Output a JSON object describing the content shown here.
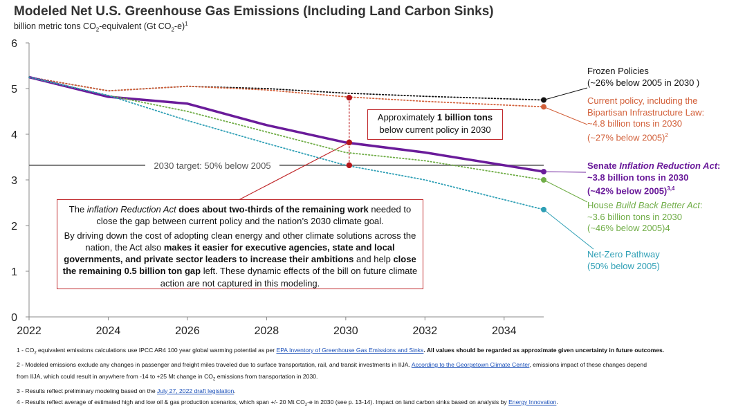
{
  "title": "Modeled Net U.S. Greenhouse Gas Emissions (Including Land Carbon Sinks)",
  "subtitle": {
    "prefix": "billion metric tons CO",
    "sub": "2",
    "mid": "-equivalent (Gt CO",
    "sub2": "2",
    "suffix": "-e)",
    "sup": "1"
  },
  "chart_data": {
    "type": "line",
    "title": "Modeled Net U.S. Greenhouse Gas Emissions (Including Land Carbon Sinks)",
    "ylabel": "billion metric tons CO2-equivalent (Gt CO2-e)",
    "xlim": [
      2022,
      2035
    ],
    "ylim": [
      0,
      6
    ],
    "x_ticks": [
      2022,
      2024,
      2026,
      2028,
      2030,
      2032,
      2034
    ],
    "y_ticks": [
      0,
      1,
      2,
      3,
      4,
      5,
      6
    ],
    "series": [
      {
        "name": "Frozen Policies",
        "color": "#111111",
        "style": "dotted",
        "x": [
          2022,
          2024,
          2026,
          2028,
          2030,
          2032,
          2035
        ],
        "y": [
          5.25,
          4.95,
          5.05,
          5.0,
          4.9,
          4.83,
          4.75
        ]
      },
      {
        "name": "Current policy, including the Bipartisan Infrastructure Law",
        "color": "#d2603a",
        "style": "dotted",
        "x": [
          2022,
          2024,
          2026,
          2028,
          2030,
          2032,
          2035
        ],
        "y": [
          5.25,
          4.95,
          5.05,
          4.97,
          4.82,
          4.72,
          4.6
        ]
      },
      {
        "name": "Senate Inflation Reduction Act",
        "color": "#6a1b9a",
        "style": "solid",
        "x": [
          2022,
          2024,
          2026,
          2028,
          2030,
          2032,
          2035
        ],
        "y": [
          5.25,
          4.82,
          4.67,
          4.2,
          3.82,
          3.6,
          3.18
        ]
      },
      {
        "name": "House Build Back Better Act",
        "color": "#70ad47",
        "style": "dotted",
        "x": [
          2022,
          2024,
          2026,
          2028,
          2030,
          2032,
          2035
        ],
        "y": [
          5.25,
          4.85,
          4.5,
          4.05,
          3.6,
          3.42,
          3.0
        ]
      },
      {
        "name": "Net-Zero Pathway",
        "color": "#2e9fb5",
        "style": "dotted",
        "x": [
          2022,
          2024,
          2026,
          2028,
          2030,
          2032,
          2035
        ],
        "y": [
          5.25,
          4.85,
          4.3,
          3.8,
          3.32,
          3.0,
          2.35
        ]
      }
    ],
    "target_line": {
      "y": 3.32,
      "label": "2030 target: 50% below 2005"
    },
    "gap_markers": {
      "x": 2030,
      "y": [
        4.8,
        3.82,
        3.32
      ]
    }
  },
  "callouts": {
    "one_billion": {
      "prefix": "Approximately ",
      "bold": "1 billion tons",
      "line2": "below current policy in 2030"
    },
    "ira_box": {
      "p1_a": "The ",
      "p1_italic": "inflation Reduction Act",
      "p1_b": " does about two-thirds of the remaining work",
      "p1_c": " needed to close the gap between current policy and the nation’s 2030 climate goal.",
      "p2_a": "By driving down the cost of adopting clean energy and other climate solutions across the nation, the Act also ",
      "p2_bold1": "makes it easier for executive agencies, state and local governments, and private sector leaders to increase their ambitions",
      "p2_b": " and help ",
      "p2_bold2": "close the remaining 0.5 billion ton gap",
      "p2_c": " left. These dynamic effects of the bill on future climate action are not captured in this modeling."
    }
  },
  "labels": {
    "frozen": {
      "line1": "Frozen Policies",
      "line2": "(~26% below 2005 in 2030 )",
      "color": "#111111"
    },
    "current": {
      "line1": "Current policy, including the",
      "line2": "Bipartisan Infrastructure Law:",
      "line3": "~4.8 billion tons in 2030",
      "line4": "(~27% below 2005)",
      "line4_sup": "2",
      "color": "#d2603a"
    },
    "senate": {
      "prefix": "Senate ",
      "italic": "Inflation Reduction Act",
      "suffix": ":",
      "line2": "~3.8 billion tons in 2030",
      "line3": "(~42% below 2005)",
      "line3_sup": "3,4",
      "color": "#6a1b9a"
    },
    "house": {
      "prefix": "House ",
      "italic": "Build Back Better Act",
      "suffix": ":",
      "line2": "~3.6 billion tons in 2030",
      "line3": "(~46% below 2005)4",
      "color": "#70ad47"
    },
    "netzero": {
      "line1": "Net-Zero Pathway",
      "line2": "(50% below 2005)",
      "color": "#2e9fb5"
    }
  },
  "footnotes": {
    "f1_a": "1 - CO",
    "f1_sub": "2",
    "f1_b": " equivalent emissions calculations use IPCC AR4 100 year global warming potential as per ",
    "f1_link": "EPA Inventory of Greenhouse Gas Emissions and Sinks",
    "f1_c": ".  All values should be regarded as approximate given uncertainty in future outcomes.",
    "f2_a": "2 - Modeled emissions exclude any changes in passenger and freight miles traveled due to surface transportation, rail, and transit investments in IIJA. ",
    "f2_link": "According to the Georgetown Climate Center",
    "f2_b": ", emissions impact of these changes depend",
    "f2_c": "from IIJA, which could result in anywhere from -14 to +25 Mt change in CO",
    "f2_sub": "2",
    "f2_d": " emissions from transportation in 2030.",
    "f3_a": "3 - Results reflect preliminary modeling based on the ",
    "f3_link": "July 27, 2022 draft legislation",
    "f3_b": ".",
    "f4_a": "4 - Results reflect average of estimated high and low oil & gas production scenarios, which span +/- 20 Mt CO",
    "f4_sub": "2",
    "f4_b": "-e in 2030 (see p. 13-14).  Impact on land carbon sinks based on analysis by ",
    "f4_link": "Energy Innovation",
    "f4_c": "."
  }
}
